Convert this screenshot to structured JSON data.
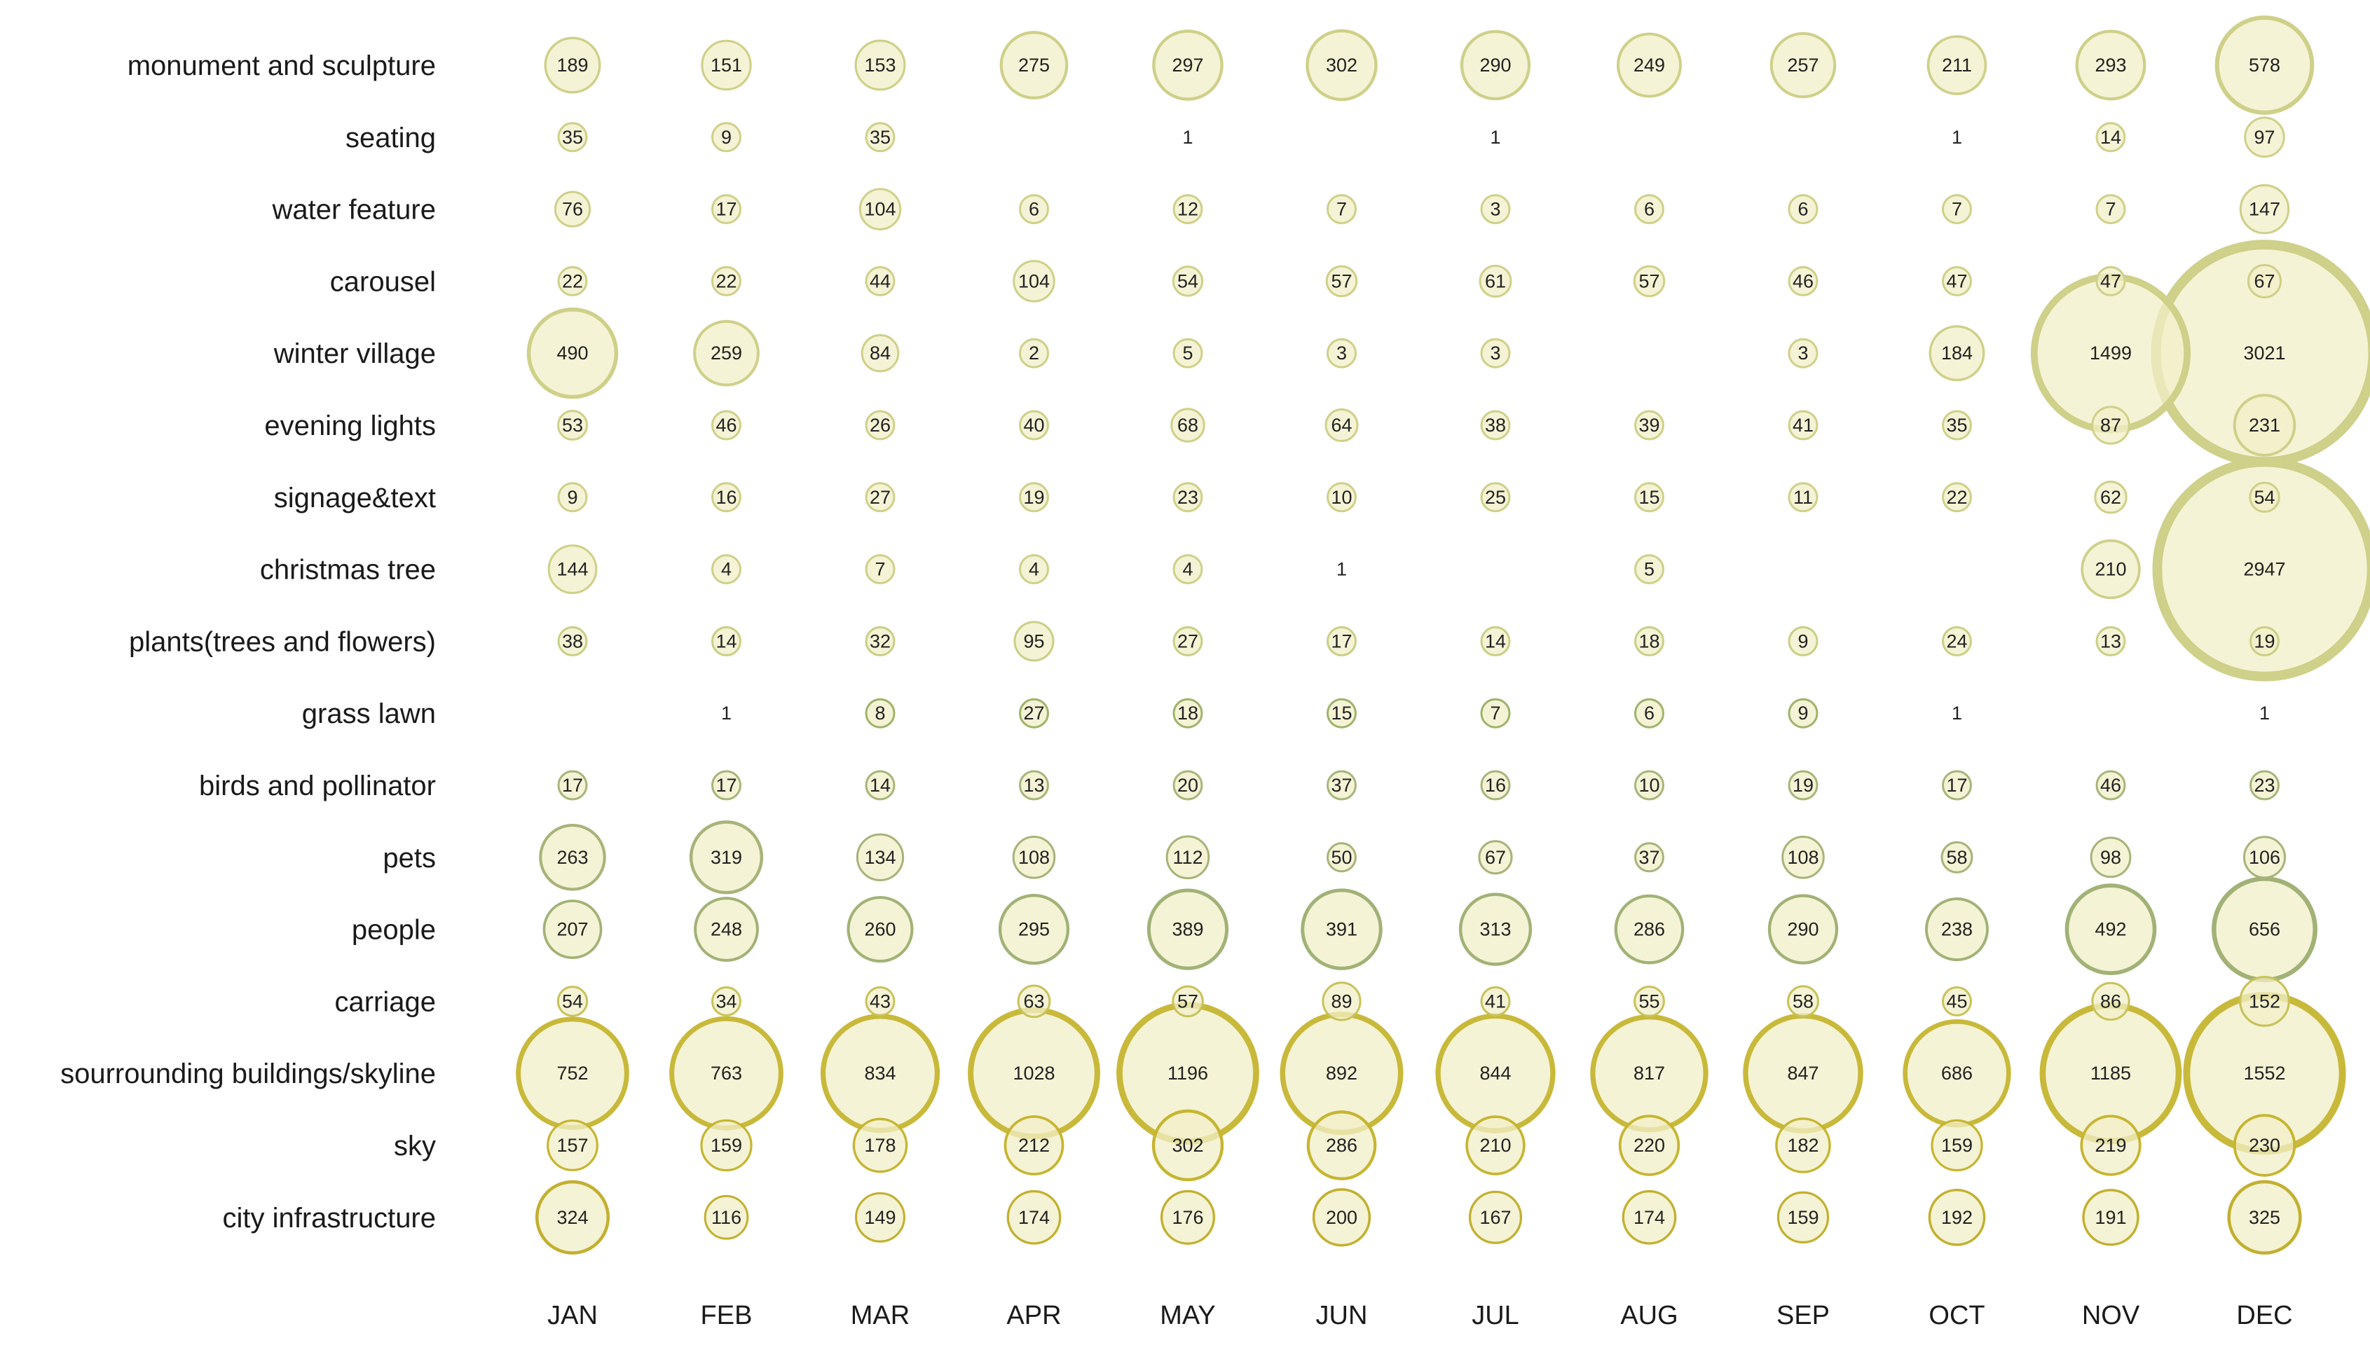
{
  "chart_data": {
    "type": "bubble-matrix",
    "columns": [
      "JAN",
      "FEB",
      "MAR",
      "APR",
      "MAY",
      "JUN",
      "JUL",
      "AUG",
      "SEP",
      "OCT",
      "NOV",
      "DEC"
    ],
    "rows": [
      {
        "name": "monument and sculpture",
        "values": [
          189,
          151,
          153,
          275,
          297,
          302,
          290,
          249,
          257,
          211,
          293,
          578
        ]
      },
      {
        "name": "seating",
        "values": [
          35,
          9,
          35,
          null,
          1,
          null,
          1,
          null,
          null,
          1,
          14,
          97
        ]
      },
      {
        "name": "water feature",
        "values": [
          76,
          17,
          104,
          6,
          12,
          7,
          3,
          6,
          6,
          7,
          7,
          147
        ]
      },
      {
        "name": "carousel",
        "values": [
          22,
          22,
          44,
          104,
          54,
          57,
          61,
          57,
          46,
          47,
          47,
          67
        ]
      },
      {
        "name": "winter village",
        "values": [
          490,
          259,
          84,
          2,
          5,
          3,
          3,
          null,
          3,
          184,
          1499,
          3021
        ]
      },
      {
        "name": "evening lights",
        "values": [
          53,
          46,
          26,
          40,
          68,
          64,
          38,
          39,
          41,
          35,
          87,
          231
        ]
      },
      {
        "name": "signage&text",
        "values": [
          9,
          16,
          27,
          19,
          23,
          10,
          25,
          15,
          11,
          22,
          62,
          54
        ]
      },
      {
        "name": "christmas tree",
        "values": [
          144,
          4,
          7,
          4,
          4,
          1,
          null,
          5,
          null,
          null,
          210,
          2947
        ]
      },
      {
        "name": "plants(trees and flowers)",
        "values": [
          38,
          14,
          32,
          95,
          27,
          17,
          14,
          18,
          9,
          24,
          13,
          19
        ]
      },
      {
        "name": "grass lawn",
        "values": [
          null,
          1,
          8,
          27,
          18,
          15,
          7,
          6,
          9,
          1,
          null,
          1
        ]
      },
      {
        "name": "birds and pollinator",
        "values": [
          17,
          17,
          14,
          13,
          20,
          37,
          16,
          10,
          19,
          17,
          46,
          23
        ]
      },
      {
        "name": "pets",
        "values": [
          263,
          319,
          134,
          108,
          112,
          50,
          67,
          37,
          108,
          58,
          98,
          106
        ]
      },
      {
        "name": "people",
        "values": [
          207,
          248,
          260,
          295,
          389,
          391,
          313,
          286,
          290,
          238,
          492,
          656
        ]
      },
      {
        "name": "carriage",
        "values": [
          54,
          34,
          43,
          63,
          57,
          89,
          41,
          55,
          58,
          45,
          86,
          152
        ]
      },
      {
        "name": "sourrounding buildings/skyline",
        "values": [
          752,
          763,
          834,
          1028,
          1196,
          892,
          844,
          817,
          847,
          686,
          1185,
          1552
        ]
      },
      {
        "name": "sky",
        "values": [
          157,
          159,
          178,
          212,
          302,
          286,
          210,
          220,
          182,
          159,
          219,
          230
        ]
      },
      {
        "name": "city infrastructure",
        "values": [
          324,
          116,
          149,
          174,
          176,
          200,
          167,
          174,
          159,
          192,
          191,
          325
        ]
      }
    ],
    "fill_color": "#f1efc7",
    "row_stroke_colors": [
      "#cfd089",
      "#cfd089",
      "#cfd089",
      "#cfd089",
      "#cfd089",
      "#cfd089",
      "#cfd089",
      "#cfd089",
      "#c9cf85",
      "#9fb36b",
      "#a7b57a",
      "#a8b37a",
      "#a2b277",
      "#c8c25a",
      "#c8b93a",
      "#c6b531",
      "#c2b030"
    ]
  }
}
